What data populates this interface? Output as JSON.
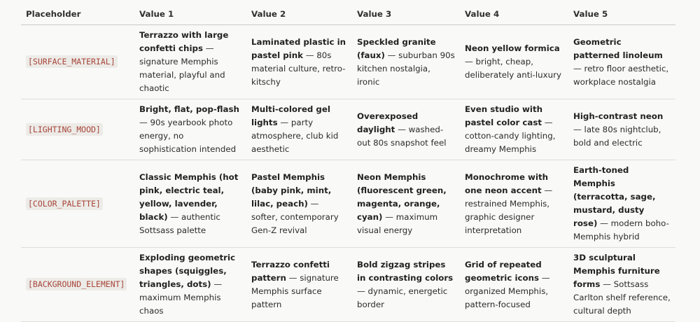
{
  "table": {
    "header": [
      "Placeholder",
      "Value 1",
      "Value 2",
      "Value 3",
      "Value 4",
      "Value 5"
    ],
    "rows": [
      {
        "placeholder": "[SURFACE_MATERIAL]",
        "cells": [
          {
            "bold": "Terrazzo with large confetti chips",
            "text": "— signature Memphis material, playful and chaotic"
          },
          {
            "bold": "Laminated plastic in pastel pink",
            "text": "— 80s material culture, retro-kitschy"
          },
          {
            "bold": "Speckled granite (faux)",
            "text": "— suburban 90s kitchen nostalgia, ironic"
          },
          {
            "bold": "Neon yellow formica",
            "text": "— bright, cheap, deliberately anti-luxury"
          },
          {
            "bold": "Geometric patterned linoleum",
            "text": "— retro floor aesthetic, workplace nostalgia"
          }
        ]
      },
      {
        "placeholder": "[LIGHTING_MOOD]",
        "cells": [
          {
            "bold": "Bright, flat, pop-flash",
            "text": "— 90s yearbook photo energy, no sophistication intended"
          },
          {
            "bold": "Multi-colored gel lights",
            "text": "— party atmosphere, club kid aesthetic"
          },
          {
            "bold": "Overexposed daylight",
            "text": "— washed-out 80s snapshot feel"
          },
          {
            "bold": "Even studio with pastel color cast",
            "text": "— cotton-candy lighting, dreamy Memphis"
          },
          {
            "bold": "High-contrast neon",
            "text": "— late 80s nightclub, bold and electric"
          }
        ]
      },
      {
        "placeholder": "[COLOR_PALETTE]",
        "cells": [
          {
            "bold": "Classic Memphis (hot pink, electric teal, yellow, lavender, black)",
            "text": "— authentic Sottsass palette"
          },
          {
            "bold": "Pastel Memphis (baby pink, mint, lilac, peach)",
            "text": "— softer, contemporary Gen-Z revival"
          },
          {
            "bold": "Neon Memphis (fluorescent green, magenta, orange, cyan)",
            "text": "— maximum visual energy"
          },
          {
            "bold": "Monochrome with one neon accent",
            "text": "— restrained Memphis, graphic designer interpretation"
          },
          {
            "bold": "Earth-toned Memphis (terracotta, sage, mustard, dusty rose)",
            "text": "— modern boho-Memphis hybrid"
          }
        ]
      },
      {
        "placeholder": "[BACKGROUND_ELEMENT]",
        "cells": [
          {
            "bold": "Exploding geometric shapes (squiggles, triangles, dots)",
            "text": "— maximum Memphis chaos"
          },
          {
            "bold": "Terrazzo confetti pattern",
            "text": "— signature Memphis surface pattern"
          },
          {
            "bold": "Bold zigzag stripes in contrasting colors",
            "text": "— dynamic, energetic border"
          },
          {
            "bold": "Grid of repeated geometric icons",
            "text": "— organized Memphis, pattern-focused"
          },
          {
            "bold": "3D sculptural Memphis furniture forms",
            "text": "— Sottsass Carlton shelf reference, cultural depth"
          }
        ]
      }
    ]
  }
}
